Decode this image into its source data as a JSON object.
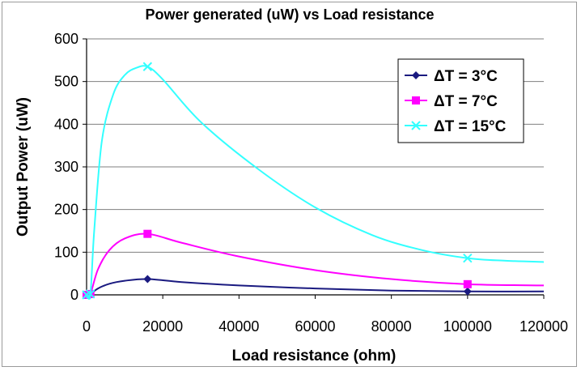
{
  "chart_data": {
    "type": "line",
    "title": "Power generated (uW) vs Load resistance",
    "xlabel": "Load resistance (ohm)",
    "ylabel": "Output Power (uW)",
    "xlim": [
      0,
      120000
    ],
    "ylim": [
      0,
      600
    ],
    "x_ticks": [
      "0",
      "20000",
      "40000",
      "60000",
      "80000",
      "100000",
      "120000"
    ],
    "y_ticks": [
      "0",
      "100",
      "200",
      "300",
      "400",
      "500",
      "600"
    ],
    "grid": "horizontal",
    "legend_position": "top-right",
    "series": [
      {
        "name": "ΔT = 3°C",
        "color": "#1a1a80",
        "marker": "diamond",
        "points": [
          [
            0,
            0
          ],
          [
            1000,
            2
          ],
          [
            16000,
            37
          ],
          [
            100000,
            8
          ]
        ],
        "curve": [
          [
            0,
            0
          ],
          [
            1000,
            2
          ],
          [
            3000,
            15
          ],
          [
            6000,
            26
          ],
          [
            10000,
            33
          ],
          [
            16000,
            37
          ],
          [
            25000,
            30
          ],
          [
            40000,
            22
          ],
          [
            60000,
            15
          ],
          [
            80000,
            10
          ],
          [
            100000,
            8
          ],
          [
            120000,
            8
          ]
        ]
      },
      {
        "name": "ΔT = 7°C",
        "color": "#ff00ff",
        "marker": "square",
        "points": [
          [
            0,
            0
          ],
          [
            1000,
            2
          ],
          [
            16000,
            143
          ],
          [
            100000,
            25
          ]
        ],
        "curve": [
          [
            0,
            0
          ],
          [
            1000,
            2
          ],
          [
            3000,
            60
          ],
          [
            6000,
            105
          ],
          [
            10000,
            132
          ],
          [
            16000,
            143
          ],
          [
            25000,
            122
          ],
          [
            40000,
            90
          ],
          [
            60000,
            58
          ],
          [
            80000,
            37
          ],
          [
            100000,
            25
          ],
          [
            120000,
            22
          ]
        ]
      },
      {
        "name": "ΔT = 15°C",
        "color": "#33ffff",
        "marker": "cross",
        "points": [
          [
            0,
            0
          ],
          [
            1000,
            2
          ],
          [
            16000,
            535
          ],
          [
            100000,
            86
          ]
        ],
        "curve": [
          [
            0,
            0
          ],
          [
            1000,
            2
          ],
          [
            2000,
            150
          ],
          [
            4000,
            360
          ],
          [
            7000,
            470
          ],
          [
            10000,
            515
          ],
          [
            13000,
            532
          ],
          [
            16000,
            535
          ],
          [
            20000,
            505
          ],
          [
            30000,
            405
          ],
          [
            45000,
            295
          ],
          [
            60000,
            205
          ],
          [
            75000,
            140
          ],
          [
            88000,
            105
          ],
          [
            100000,
            86
          ],
          [
            110000,
            80
          ],
          [
            120000,
            77
          ]
        ]
      }
    ]
  }
}
